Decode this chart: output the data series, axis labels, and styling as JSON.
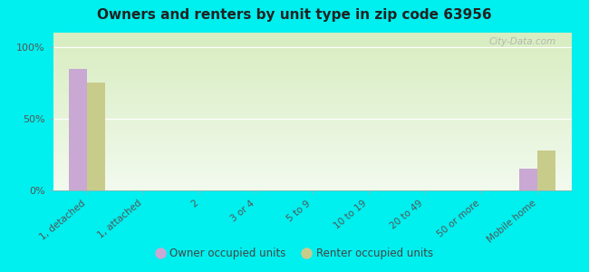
{
  "title": "Owners and renters by unit type in zip code 63956",
  "categories": [
    "1, detached",
    "1, attached",
    "2",
    "3 or 4",
    "5 to 9",
    "10 to 19",
    "20 to 49",
    "50 or more",
    "Mobile home"
  ],
  "owner_values": [
    85,
    0,
    0,
    0,
    0,
    0,
    0,
    0,
    15
  ],
  "renter_values": [
    75,
    0,
    0,
    0,
    0,
    0,
    0,
    0,
    28
  ],
  "owner_color": "#c9a8d4",
  "renter_color": "#c8cc8a",
  "outer_background": "#00efef",
  "yticks": [
    0,
    50,
    100
  ],
  "ylim": [
    0,
    110
  ],
  "watermark": "City-Data.com",
  "legend_owner": "Owner occupied units",
  "legend_renter": "Renter occupied units",
  "bar_width": 0.32
}
